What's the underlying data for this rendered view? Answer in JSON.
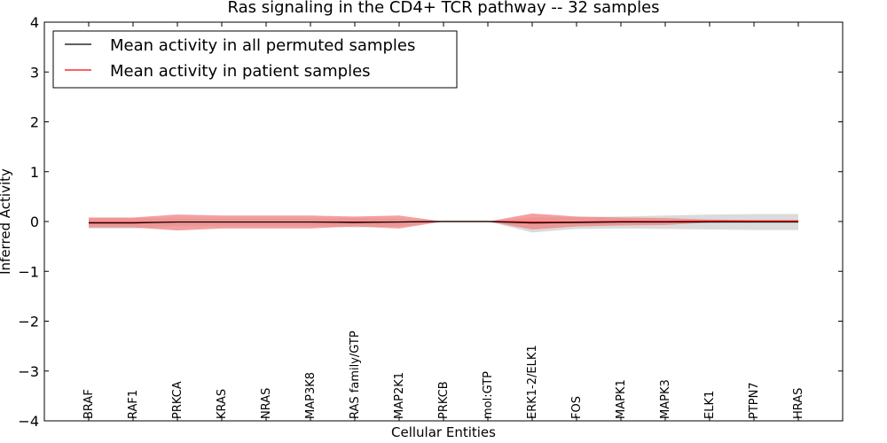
{
  "chart_data": {
    "type": "line",
    "title": "Ras signaling in the CD4+ TCR pathway -- 32 samples",
    "xlabel": "Cellular Entities",
    "ylabel": "Inferred Activity",
    "ylim": [
      -4,
      4
    ],
    "yticks": [
      -4,
      -3,
      -2,
      -1,
      0,
      1,
      2,
      3,
      4
    ],
    "ytick_labels": [
      "−4",
      "−3",
      "−2",
      "−1",
      "0",
      "1",
      "2",
      "3",
      "4"
    ],
    "grid": false,
    "legend_position": "top-left",
    "categories": [
      "BRAF",
      "RAF1",
      "PRKCA",
      "KRAS",
      "NRAS",
      "MAP3K8",
      "RAS family/GTP",
      "MAP2K1",
      "PRKCB",
      "mol:GTP",
      "ERK1-2/ELK1",
      "FOS",
      "MAPK1",
      "MAPK3",
      "ELK1",
      "PTPN7",
      "HRAS"
    ],
    "series": [
      {
        "name": "Mean activity in all permuted samples",
        "color": "#000000",
        "values": [
          -0.03,
          -0.03,
          -0.01,
          -0.01,
          -0.01,
          -0.01,
          -0.02,
          -0.01,
          0.0,
          0.0,
          -0.03,
          -0.02,
          -0.01,
          -0.01,
          -0.01,
          -0.01,
          -0.01
        ],
        "band_upper": [
          0.07,
          0.07,
          0.06,
          0.06,
          0.06,
          0.06,
          0.07,
          0.05,
          0.0,
          0.0,
          0.08,
          0.09,
          0.1,
          0.12,
          0.14,
          0.15,
          0.15
        ],
        "band_lower": [
          -0.14,
          -0.14,
          -0.09,
          -0.09,
          -0.09,
          -0.09,
          -0.12,
          -0.1,
          0.0,
          0.0,
          -0.22,
          -0.15,
          -0.14,
          -0.15,
          -0.16,
          -0.17,
          -0.17
        ],
        "band_color": "#bdbdbd"
      },
      {
        "name": "Mean activity in patient samples",
        "color": "#ff0000",
        "values": [
          -0.02,
          -0.02,
          -0.01,
          -0.01,
          -0.01,
          -0.01,
          -0.01,
          -0.01,
          0.0,
          0.0,
          -0.01,
          -0.01,
          0.0,
          0.0,
          0.01,
          0.01,
          0.01
        ],
        "band_upper": [
          0.08,
          0.08,
          0.14,
          0.12,
          0.12,
          0.12,
          0.1,
          0.12,
          0.0,
          0.0,
          0.16,
          0.1,
          0.08,
          0.07,
          0.04,
          0.03,
          0.03
        ],
        "band_lower": [
          -0.12,
          -0.12,
          -0.18,
          -0.14,
          -0.14,
          -0.14,
          -0.1,
          -0.14,
          0.0,
          0.0,
          -0.16,
          -0.1,
          -0.08,
          -0.07,
          -0.02,
          -0.01,
          -0.01
        ],
        "band_color": "#f08080"
      }
    ]
  }
}
